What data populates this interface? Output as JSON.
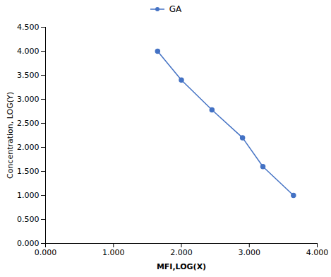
{
  "chart_data": {
    "type": "line",
    "x": [
      1.65,
      2.0,
      2.45,
      2.9,
      3.2,
      3.65
    ],
    "series": [
      {
        "name": "GA",
        "color": "#4472C4",
        "marker": "circle",
        "values": [
          4.0,
          3.4,
          2.78,
          2.2,
          1.6,
          1.0
        ]
      }
    ],
    "xlabel": "MFI,LOG(X)",
    "ylabel": "Concentration, LOG(Y)",
    "xlim": [
      0.0,
      4.0
    ],
    "ylim": [
      0.0,
      4.5
    ],
    "xticks": [
      {
        "value": 0,
        "label": "0.000"
      },
      {
        "value": 1,
        "label": "1.000"
      },
      {
        "value": 2,
        "label": "2.000"
      },
      {
        "value": 3,
        "label": "3.000"
      },
      {
        "value": 4,
        "label": "4.000"
      }
    ],
    "yticks": [
      {
        "value": 0,
        "label": "0.000"
      },
      {
        "value": 0.5,
        "label": "0.500"
      },
      {
        "value": 1,
        "label": "1.000"
      },
      {
        "value": 1.5,
        "label": "1.500"
      },
      {
        "value": 2,
        "label": "2.000"
      },
      {
        "value": 2.5,
        "label": "2.500"
      },
      {
        "value": 3,
        "label": "3.000"
      },
      {
        "value": 3.5,
        "label": "3.500"
      },
      {
        "value": 4,
        "label": "4.000"
      },
      {
        "value": 4.5,
        "label": "4.500"
      }
    ],
    "grid": false,
    "legend": "top"
  }
}
